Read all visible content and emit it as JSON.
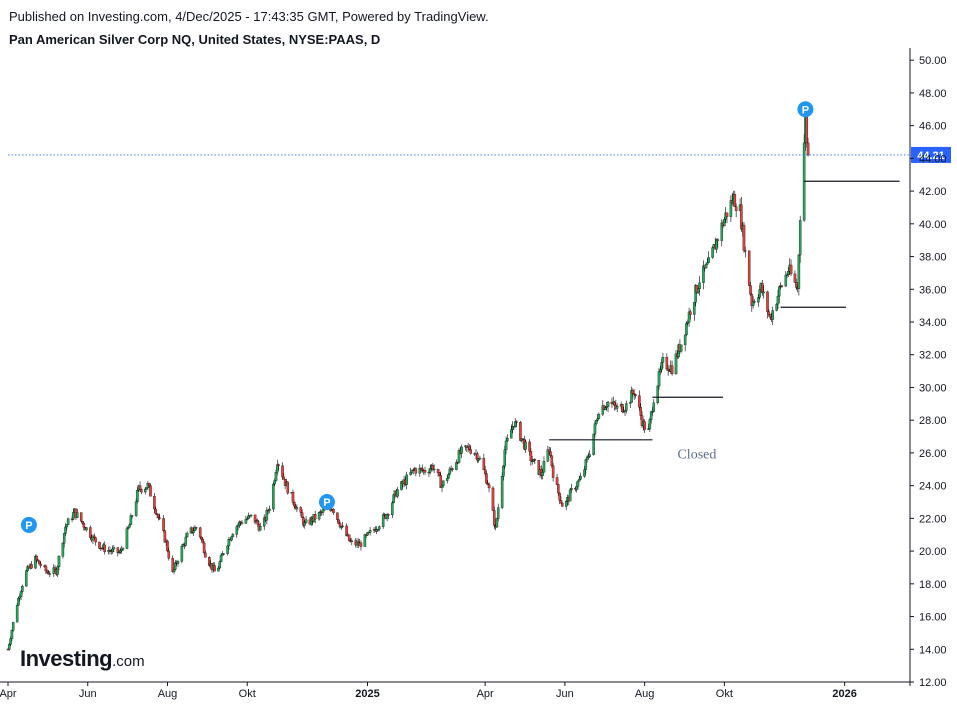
{
  "header": {
    "published": "Published on Investing.com, 4/Dec/2025 - 17:43:35 GMT, Powered by TradingView.",
    "title": "Pan American Silver Corp NQ, United States, NYSE:PAAS, D"
  },
  "logo": {
    "main": "Investing",
    "domain": ".com"
  },
  "colors": {
    "up": "#26a65b",
    "down": "#e0403a",
    "marker": "#2196f3",
    "axis": "#131722",
    "last_price_bg": "#2962ff"
  },
  "chart_data": {
    "type": "candlestick",
    "title": "Pan American Silver Corp NQ, United States, NYSE:PAAS, D",
    "x_range": [
      "2024-04-01",
      "2026-02-20"
    ],
    "y_range": [
      12,
      50.5
    ],
    "x_ticks": [
      {
        "date": "2024-04-01",
        "label": "Apr",
        "bold": false
      },
      {
        "date": "2024-06-01",
        "label": "Jun",
        "bold": false
      },
      {
        "date": "2024-08-01",
        "label": "Aug",
        "bold": false
      },
      {
        "date": "2024-10-01",
        "label": "Okt",
        "bold": false
      },
      {
        "date": "2025-01-01",
        "label": "2025",
        "bold": true
      },
      {
        "date": "2025-04-01",
        "label": "Apr",
        "bold": false
      },
      {
        "date": "2025-06-01",
        "label": "Jun",
        "bold": false
      },
      {
        "date": "2025-08-01",
        "label": "Aug",
        "bold": false
      },
      {
        "date": "2025-10-01",
        "label": "Okt",
        "bold": false
      },
      {
        "date": "2026-01-01",
        "label": "2026",
        "bold": true
      }
    ],
    "y_ticks": [
      "12.00",
      "14.00",
      "16.00",
      "18.00",
      "20.00",
      "22.00",
      "24.00",
      "26.00",
      "28.00",
      "30.00",
      "32.00",
      "34.00",
      "36.00",
      "38.00",
      "40.00",
      "42.00",
      "44.00",
      "46.00",
      "48.00",
      "50.00"
    ],
    "last_price": {
      "value": 44.21,
      "label": "44.21"
    },
    "close_path": [
      [
        "2024-04-01",
        14.0
      ],
      [
        "2024-04-08",
        16.8
      ],
      [
        "2024-04-14",
        18.6
      ],
      [
        "2024-04-22",
        19.5
      ],
      [
        "2024-05-01",
        18.7
      ],
      [
        "2024-05-08",
        18.8
      ],
      [
        "2024-05-15",
        21.5
      ],
      [
        "2024-05-22",
        22.4
      ],
      [
        "2024-05-29",
        21.6
      ],
      [
        "2024-06-05",
        20.8
      ],
      [
        "2024-06-12",
        20.2
      ],
      [
        "2024-06-19",
        20.0
      ],
      [
        "2024-06-26",
        19.9
      ],
      [
        "2024-07-03",
        21.6
      ],
      [
        "2024-07-10",
        23.8
      ],
      [
        "2024-07-17",
        24.0
      ],
      [
        "2024-07-24",
        22.3
      ],
      [
        "2024-07-31",
        20.5
      ],
      [
        "2024-08-05",
        18.6
      ],
      [
        "2024-08-10",
        19.8
      ],
      [
        "2024-08-17",
        21.1
      ],
      [
        "2024-08-24",
        21.5
      ],
      [
        "2024-08-31",
        19.6
      ],
      [
        "2024-09-07",
        18.6
      ],
      [
        "2024-09-14",
        20.2
      ],
      [
        "2024-09-21",
        21.4
      ],
      [
        "2024-09-28",
        21.9
      ],
      [
        "2024-10-05",
        22.1
      ],
      [
        "2024-10-12",
        21.3
      ],
      [
        "2024-10-19",
        23.0
      ],
      [
        "2024-10-24",
        25.6
      ],
      [
        "2024-10-31",
        24.0
      ],
      [
        "2024-11-07",
        22.8
      ],
      [
        "2024-11-14",
        21.6
      ],
      [
        "2024-11-21",
        22.0
      ],
      [
        "2024-11-28",
        22.4
      ],
      [
        "2024-12-05",
        22.7
      ],
      [
        "2024-12-12",
        21.5
      ],
      [
        "2024-12-19",
        20.5
      ],
      [
        "2024-12-26",
        20.4
      ],
      [
        "2025-01-02",
        21.0
      ],
      [
        "2025-01-09",
        21.6
      ],
      [
        "2025-01-16",
        22.3
      ],
      [
        "2025-01-23",
        23.6
      ],
      [
        "2025-01-30",
        24.3
      ],
      [
        "2025-02-06",
        25.0
      ],
      [
        "2025-02-13",
        24.9
      ],
      [
        "2025-02-20",
        25.2
      ],
      [
        "2025-02-27",
        24.0
      ],
      [
        "2025-03-06",
        25.0
      ],
      [
        "2025-03-13",
        26.0
      ],
      [
        "2025-03-20",
        26.3
      ],
      [
        "2025-03-27",
        25.8
      ],
      [
        "2025-04-03",
        24.2
      ],
      [
        "2025-04-09",
        21.3
      ],
      [
        "2025-04-16",
        26.2
      ],
      [
        "2025-04-23",
        27.9
      ],
      [
        "2025-04-30",
        26.7
      ],
      [
        "2025-05-07",
        25.5
      ],
      [
        "2025-05-14",
        24.7
      ],
      [
        "2025-05-20",
        26.3
      ],
      [
        "2025-05-24",
        24.3
      ],
      [
        "2025-05-31",
        22.6
      ],
      [
        "2025-06-07",
        23.8
      ],
      [
        "2025-06-14",
        24.5
      ],
      [
        "2025-06-21",
        26.4
      ],
      [
        "2025-06-27",
        28.7
      ],
      [
        "2025-07-04",
        29.1
      ],
      [
        "2025-07-11",
        28.7
      ],
      [
        "2025-07-18",
        28.9
      ],
      [
        "2025-07-24",
        29.8
      ],
      [
        "2025-07-31",
        27.7
      ],
      [
        "2025-08-04",
        27.3
      ],
      [
        "2025-08-08",
        29.4
      ],
      [
        "2025-08-15",
        31.5
      ],
      [
        "2025-08-22",
        31.2
      ],
      [
        "2025-08-29",
        32.7
      ],
      [
        "2025-09-05",
        34.8
      ],
      [
        "2025-09-12",
        36.6
      ],
      [
        "2025-09-19",
        37.5
      ],
      [
        "2025-09-26",
        39.2
      ],
      [
        "2025-10-02",
        40.5
      ],
      [
        "2025-10-08",
        41.6
      ],
      [
        "2025-10-13",
        40.8
      ],
      [
        "2025-10-17",
        38.2
      ],
      [
        "2025-10-22",
        35.2
      ],
      [
        "2025-10-29",
        36.1
      ],
      [
        "2025-11-05",
        34.2
      ],
      [
        "2025-11-12",
        35.9
      ],
      [
        "2025-11-19",
        37.2
      ],
      [
        "2025-11-26",
        36.0
      ],
      [
        "2025-11-28",
        40.6
      ],
      [
        "2025-12-01",
        45.0
      ],
      [
        "2025-12-02",
        46.3
      ],
      [
        "2025-12-03",
        45.2
      ],
      [
        "2025-12-04",
        44.21
      ]
    ],
    "levels": [
      {
        "start": "2025-05-20",
        "end": "2025-08-07",
        "value": 26.8
      },
      {
        "start": "2025-08-07",
        "end": "2025-09-30",
        "value": 29.4
      },
      {
        "start": "2025-11-13",
        "end": "2026-01-02",
        "value": 34.9
      },
      {
        "start": "2025-12-01",
        "end": "2026-02-12",
        "value": 42.6
      }
    ],
    "markers": [
      {
        "date": "2024-04-17",
        "value": 21.6,
        "label": "P"
      },
      {
        "date": "2024-12-01",
        "value": 23.0,
        "label": "P"
      },
      {
        "date": "2025-12-02",
        "value": 47.0,
        "label": "P"
      }
    ],
    "annotations": [
      {
        "date": "2025-09-10",
        "value": 25.9,
        "text": "Closed"
      }
    ]
  }
}
